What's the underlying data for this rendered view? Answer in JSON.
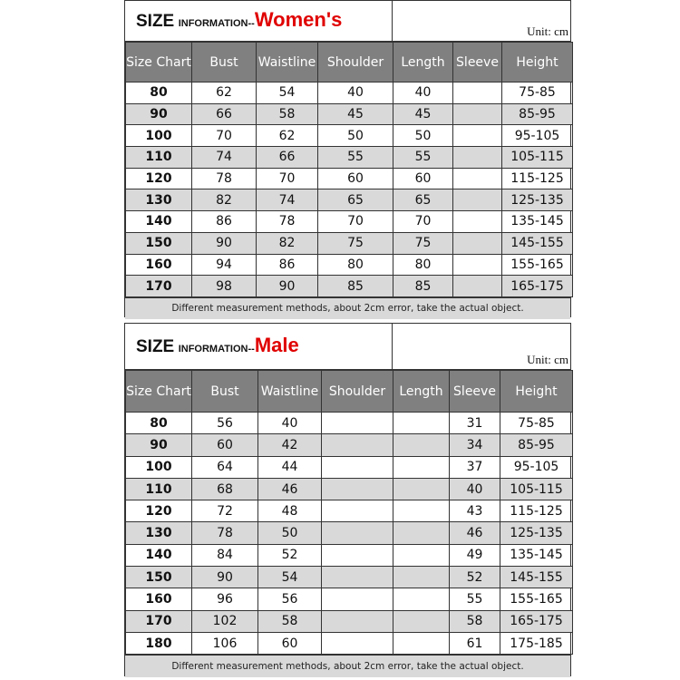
{
  "women": {
    "title_prefix": "SIZE",
    "title_middle": "INFORMATION--",
    "title_accent": "Women's",
    "unit": "Unit: cm",
    "headers": [
      "Size Chart",
      "Bust",
      "Waistline",
      "Shoulder",
      "Length",
      "Sleeve",
      "Height"
    ],
    "rows": [
      [
        "80",
        "62",
        "54",
        "40",
        "40",
        "",
        "75-85"
      ],
      [
        "90",
        "66",
        "58",
        "45",
        "45",
        "",
        "85-95"
      ],
      [
        "100",
        "70",
        "62",
        "50",
        "50",
        "",
        "95-105"
      ],
      [
        "110",
        "74",
        "66",
        "55",
        "55",
        "",
        "105-115"
      ],
      [
        "120",
        "78",
        "70",
        "60",
        "60",
        "",
        "115-125"
      ],
      [
        "130",
        "82",
        "74",
        "65",
        "65",
        "",
        "125-135"
      ],
      [
        "140",
        "86",
        "78",
        "70",
        "70",
        "",
        "135-145"
      ],
      [
        "150",
        "90",
        "82",
        "75",
        "75",
        "",
        "145-155"
      ],
      [
        "160",
        "94",
        "86",
        "80",
        "80",
        "",
        "155-165"
      ],
      [
        "170",
        "98",
        "90",
        "85",
        "85",
        "",
        "165-175"
      ]
    ],
    "note": "Different measurement methods, about 2cm error, take the actual object."
  },
  "male": {
    "title_prefix": "SIZE",
    "title_middle": "INFORMATION--",
    "title_accent": "Male",
    "unit": "Unit: cm",
    "headers": [
      "Size Chart",
      "Bust",
      "Waistline",
      "Shoulder",
      "Length",
      "Sleeve",
      "Height"
    ],
    "rows": [
      [
        "80",
        "56",
        "40",
        "",
        "",
        "31",
        "75-85"
      ],
      [
        "90",
        "60",
        "42",
        "",
        "",
        "34",
        "85-95"
      ],
      [
        "100",
        "64",
        "44",
        "",
        "",
        "37",
        "95-105"
      ],
      [
        "110",
        "68",
        "46",
        "",
        "",
        "40",
        "105-115"
      ],
      [
        "120",
        "72",
        "48",
        "",
        "",
        "43",
        "115-125"
      ],
      [
        "130",
        "78",
        "50",
        "",
        "",
        "46",
        "125-135"
      ],
      [
        "140",
        "84",
        "52",
        "",
        "",
        "49",
        "135-145"
      ],
      [
        "150",
        "90",
        "54",
        "",
        "",
        "52",
        "145-155"
      ],
      [
        "160",
        "96",
        "56",
        "",
        "",
        "55",
        "155-165"
      ],
      [
        "170",
        "102",
        "58",
        "",
        "",
        "58",
        "165-175"
      ],
      [
        "180",
        "106",
        "60",
        "",
        "",
        "61",
        "175-185"
      ]
    ],
    "note": "Different measurement methods, about 2cm error, take the actual object."
  },
  "colors": {
    "header_bg": "#808080",
    "alt_row": "#d9d9d9",
    "accent": "#e00000"
  }
}
